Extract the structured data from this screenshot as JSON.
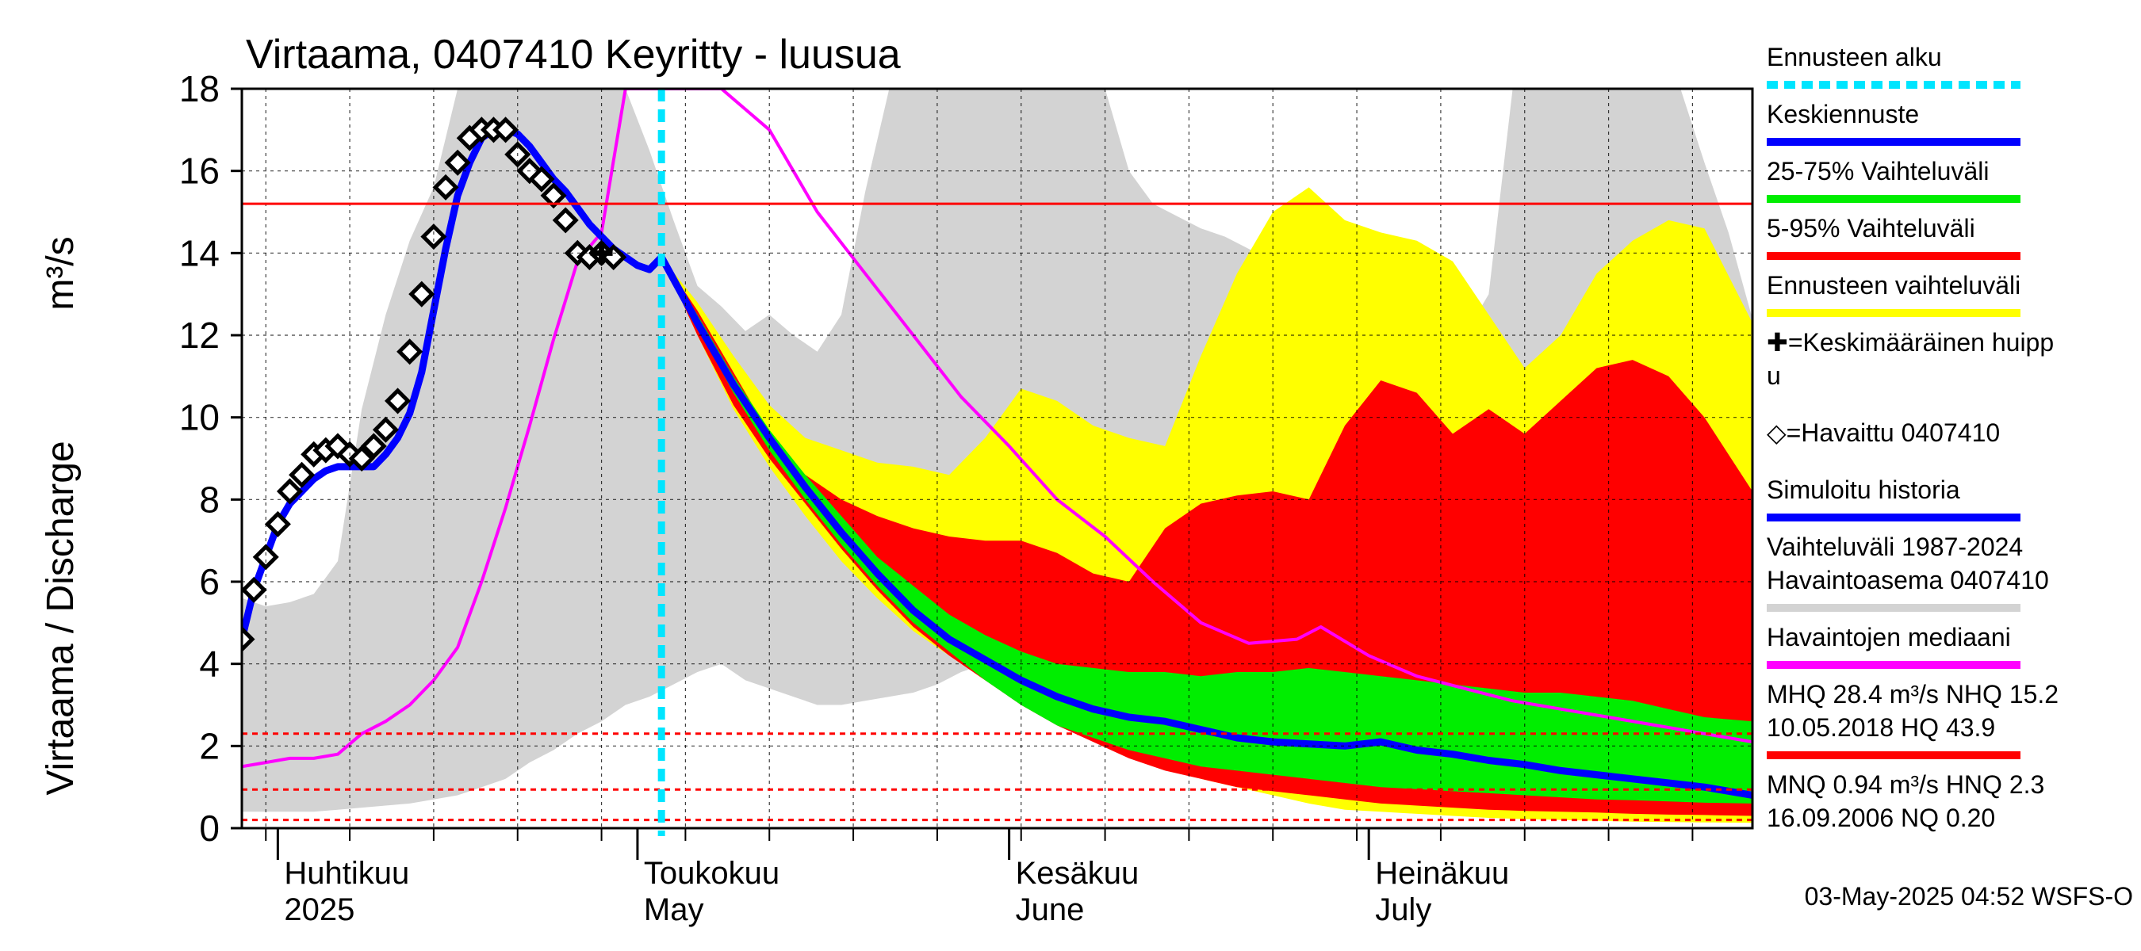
{
  "chart_data": {
    "type": "area",
    "title": "Virtaama, 0407410 Keyritty - luusua",
    "ylabel": "Virtaama / Discharge",
    "yunit": "m³/s",
    "ylim": [
      0,
      18
    ],
    "yticks": [
      0,
      2,
      4,
      6,
      8,
      10,
      12,
      14,
      16,
      18
    ],
    "ytick_labels": [
      "0",
      "2",
      "4",
      "6",
      "8",
      "10",
      "12",
      "14",
      "16",
      "18"
    ],
    "xlim": [
      "2025-03-29",
      "2025-08-02"
    ],
    "grid": true,
    "x_axis_labels": [
      {
        "date": "2025-04-01",
        "line1": "Huhtikuu",
        "line2": "2025"
      },
      {
        "date": "2025-05-01",
        "line1": "Toukokuu",
        "line2": "May"
      },
      {
        "date": "2025-06-01",
        "line1": "Kesäkuu",
        "line2": "June"
      },
      {
        "date": "2025-07-01",
        "line1": "Heinäkuu",
        "line2": "July"
      }
    ],
    "forecast_start": "2025-05-03",
    "reference_lines": [
      {
        "name": "NHQ",
        "value": 15.2,
        "style": "solid"
      },
      {
        "name": "HNQ",
        "value": 2.3,
        "style": "dashed"
      },
      {
        "name": "MNQ",
        "value": 0.94,
        "style": "dashed"
      },
      {
        "name": "NQ",
        "value": 0.2,
        "style": "dashed"
      }
    ],
    "series": [
      {
        "name": "Vaihteluväli 1987-2024 Havaintoasema 0407410",
        "kind": "band",
        "x": [
          "2025-03-29",
          "2025-03-31",
          "2025-04-02",
          "2025-04-04",
          "2025-04-06",
          "2025-04-08",
          "2025-04-10",
          "2025-04-12",
          "2025-04-14",
          "2025-04-16",
          "2025-04-18",
          "2025-04-20",
          "2025-04-22",
          "2025-04-24",
          "2025-04-26",
          "2025-04-28",
          "2025-04-30",
          "2025-05-02",
          "2025-05-04",
          "2025-05-06",
          "2025-05-08",
          "2025-05-10",
          "2025-05-12",
          "2025-05-14",
          "2025-05-16",
          "2025-05-18",
          "2025-05-20",
          "2025-05-22",
          "2025-05-24",
          "2025-05-26",
          "2025-05-28",
          "2025-05-30",
          "2025-06-01",
          "2025-06-03",
          "2025-06-05",
          "2025-06-07",
          "2025-06-09",
          "2025-06-11",
          "2025-06-13",
          "2025-06-15",
          "2025-06-17",
          "2025-06-19",
          "2025-06-21",
          "2025-06-23",
          "2025-06-25",
          "2025-06-27",
          "2025-06-29",
          "2025-07-01",
          "2025-07-03",
          "2025-07-05",
          "2025-07-07",
          "2025-07-09",
          "2025-07-11",
          "2025-07-13",
          "2025-07-15",
          "2025-07-17",
          "2025-07-19",
          "2025-07-21",
          "2025-07-23",
          "2025-07-25",
          "2025-07-27",
          "2025-07-29",
          "2025-07-31",
          "2025-08-02"
        ],
        "upper": [
          5.6,
          5.4,
          5.5,
          5.7,
          6.5,
          10.2,
          12.5,
          14.3,
          15.6,
          18,
          18,
          18,
          18,
          18,
          18,
          18,
          18,
          16.5,
          14.8,
          13.2,
          12.7,
          12.1,
          12.5,
          12,
          11.6,
          12.5,
          15.5,
          18,
          18,
          18,
          18,
          18,
          18,
          18,
          18,
          18,
          18,
          16,
          15.2,
          14.9,
          14.6,
          14.4,
          14.1,
          13.8,
          13.4,
          13,
          12.8,
          12.5,
          11.9,
          11.3,
          11.5,
          12,
          13,
          18,
          18,
          18,
          18,
          18,
          18,
          18,
          18,
          16.2,
          14.5,
          12.4
        ],
        "lower": [
          0.4,
          0.4,
          0.4,
          0.4,
          0.45,
          0.5,
          0.55,
          0.6,
          0.7,
          0.8,
          1,
          1.2,
          1.6,
          1.9,
          2.3,
          2.6,
          3,
          3.2,
          3.5,
          3.8,
          4,
          3.6,
          3.4,
          3.2,
          3,
          3,
          3.1,
          3.2,
          3.3,
          3.5,
          3.8,
          4,
          3.6,
          3.4,
          3.2,
          3.1,
          3,
          2.9,
          2.8,
          2.7,
          2.6,
          2.5,
          2.4,
          2.3,
          2.2,
          2.1,
          2,
          1.9,
          1.8,
          1.7,
          1.6,
          1.6,
          1.5,
          1.5,
          1.4,
          1.4,
          1.3,
          1.3,
          1.2,
          1.2,
          1.1,
          1.1,
          1,
          1
        ],
        "color": "#d3d3d3"
      },
      {
        "name": "Ennusteen vaihteluväli",
        "kind": "band",
        "x": [
          "2025-05-03",
          "2025-05-06",
          "2025-05-09",
          "2025-05-12",
          "2025-05-15",
          "2025-05-18",
          "2025-05-21",
          "2025-05-24",
          "2025-05-27",
          "2025-05-30",
          "2025-06-02",
          "2025-06-05",
          "2025-06-08",
          "2025-06-11",
          "2025-06-14",
          "2025-06-17",
          "2025-06-20",
          "2025-06-23",
          "2025-06-26",
          "2025-06-29",
          "2025-07-02",
          "2025-07-05",
          "2025-07-08",
          "2025-07-11",
          "2025-07-14",
          "2025-07-17",
          "2025-07-20",
          "2025-07-23",
          "2025-07-26",
          "2025-07-29",
          "2025-08-02"
        ],
        "upper": [
          13.9,
          12.8,
          11.5,
          10.3,
          9.5,
          9.2,
          8.9,
          8.8,
          8.6,
          9.5,
          10.7,
          10.4,
          9.8,
          9.5,
          9.3,
          11.5,
          13.5,
          15,
          15.6,
          14.8,
          14.5,
          14.3,
          13.8,
          12.5,
          11.2,
          12,
          13.5,
          14.3,
          14.8,
          14.6,
          12.3
        ],
        "lower": [
          13.9,
          12,
          10.2,
          8.8,
          7.6,
          6.5,
          5.6,
          4.8,
          4.2,
          3.6,
          3.1,
          2.6,
          2.2,
          1.8,
          1.5,
          1.2,
          1,
          0.8,
          0.6,
          0.45,
          0.4,
          0.35,
          0.3,
          0.25,
          0.22,
          0.2,
          0.18,
          0.16,
          0.15,
          0.14,
          0.13
        ],
        "color": "#ffff00"
      },
      {
        "name": "5-95% Vaihteluväli",
        "kind": "band",
        "x": [
          "2025-05-03",
          "2025-05-06",
          "2025-05-09",
          "2025-05-12",
          "2025-05-15",
          "2025-05-18",
          "2025-05-21",
          "2025-05-24",
          "2025-05-27",
          "2025-05-30",
          "2025-06-02",
          "2025-06-05",
          "2025-06-08",
          "2025-06-11",
          "2025-06-14",
          "2025-06-17",
          "2025-06-20",
          "2025-06-23",
          "2025-06-26",
          "2025-06-29",
          "2025-07-02",
          "2025-07-05",
          "2025-07-08",
          "2025-07-11",
          "2025-07-14",
          "2025-07-17",
          "2025-07-20",
          "2025-07-23",
          "2025-07-26",
          "2025-07-29",
          "2025-08-02"
        ],
        "upper": [
          13.9,
          12.6,
          11.1,
          9.6,
          8.6,
          8,
          7.6,
          7.3,
          7.1,
          7,
          7,
          6.7,
          6.2,
          6,
          7.3,
          7.9,
          8.1,
          8.2,
          8,
          9.8,
          10.9,
          10.6,
          9.6,
          10.2,
          9.6,
          10.4,
          11.2,
          11.4,
          11,
          10,
          8.2
        ],
        "lower": [
          13.9,
          12,
          10.3,
          9,
          7.9,
          6.8,
          5.8,
          4.9,
          4.2,
          3.6,
          3,
          2.5,
          2.1,
          1.7,
          1.4,
          1.2,
          1,
          0.9,
          0.8,
          0.7,
          0.6,
          0.55,
          0.5,
          0.45,
          0.42,
          0.4,
          0.38,
          0.35,
          0.33,
          0.32,
          0.3
        ],
        "color": "#ff0000"
      },
      {
        "name": "25-75% Vaihteluväli",
        "kind": "band",
        "x": [
          "2025-05-03",
          "2025-05-06",
          "2025-05-09",
          "2025-05-12",
          "2025-05-15",
          "2025-05-18",
          "2025-05-21",
          "2025-05-24",
          "2025-05-27",
          "2025-05-30",
          "2025-06-02",
          "2025-06-05",
          "2025-06-08",
          "2025-06-11",
          "2025-06-14",
          "2025-06-17",
          "2025-06-20",
          "2025-06-23",
          "2025-06-26",
          "2025-06-29",
          "2025-07-02",
          "2025-07-05",
          "2025-07-08",
          "2025-07-11",
          "2025-07-14",
          "2025-07-17",
          "2025-07-20",
          "2025-07-23",
          "2025-07-26",
          "2025-07-29",
          "2025-08-02"
        ],
        "upper": [
          13.9,
          12.5,
          11,
          9.7,
          8.6,
          7.6,
          6.6,
          5.9,
          5.2,
          4.7,
          4.3,
          4,
          3.9,
          3.8,
          3.8,
          3.7,
          3.8,
          3.8,
          3.9,
          3.8,
          3.7,
          3.6,
          3.5,
          3.4,
          3.3,
          3.3,
          3.2,
          3.1,
          2.9,
          2.7,
          2.6
        ],
        "lower": [
          13.9,
          12.2,
          10.6,
          9.2,
          8,
          6.9,
          5.9,
          5,
          4.3,
          3.6,
          3,
          2.5,
          2.2,
          1.9,
          1.7,
          1.5,
          1.4,
          1.3,
          1.2,
          1.1,
          1,
          0.95,
          0.9,
          0.85,
          0.8,
          0.75,
          0.7,
          0.68,
          0.65,
          0.62,
          0.6
        ],
        "color": "#00ee00"
      },
      {
        "name": "Havaintojen mediaani",
        "kind": "line",
        "x": [
          "2025-03-29",
          "2025-03-31",
          "2025-04-02",
          "2025-04-04",
          "2025-04-06",
          "2025-04-08",
          "2025-04-10",
          "2025-04-12",
          "2025-04-14",
          "2025-04-16",
          "2025-04-18",
          "2025-04-20",
          "2025-04-22",
          "2025-04-24",
          "2025-04-26",
          "2025-04-28",
          "2025-04-30",
          "2025-05-08",
          "2025-05-12",
          "2025-05-16",
          "2025-05-20",
          "2025-05-24",
          "2025-05-28",
          "2025-06-01",
          "2025-06-05",
          "2025-06-09",
          "2025-06-13",
          "2025-06-17",
          "2025-06-21",
          "2025-06-25",
          "2025-06-27",
          "2025-07-01",
          "2025-07-05",
          "2025-07-09",
          "2025-07-13",
          "2025-07-17",
          "2025-07-21",
          "2025-07-25",
          "2025-07-29",
          "2025-08-02"
        ],
        "y": [
          1.5,
          1.6,
          1.7,
          1.7,
          1.8,
          2.3,
          2.6,
          3,
          3.6,
          4.4,
          6,
          7.8,
          9.8,
          11.9,
          13.8,
          14.5,
          19,
          19,
          17,
          15,
          13.5,
          12,
          10.5,
          9.3,
          8,
          7.1,
          6,
          5,
          4.5,
          4.6,
          4.9,
          4.2,
          3.7,
          3.4,
          3.1,
          2.9,
          2.7,
          2.5,
          2.3,
          2.1
        ],
        "color": "#ff00ff"
      },
      {
        "name": "Simuloitu historia",
        "kind": "line",
        "x": [
          "2025-03-29",
          "2025-03-30",
          "2025-03-31",
          "2025-04-01",
          "2025-04-02",
          "2025-04-03",
          "2025-04-04",
          "2025-04-05",
          "2025-04-06",
          "2025-04-07",
          "2025-04-08",
          "2025-04-09",
          "2025-04-10",
          "2025-04-11",
          "2025-04-12",
          "2025-04-13",
          "2025-04-14",
          "2025-04-15",
          "2025-04-16",
          "2025-04-17",
          "2025-04-18",
          "2025-04-19",
          "2025-04-20",
          "2025-04-21",
          "2025-04-22",
          "2025-04-23",
          "2025-04-24",
          "2025-04-25",
          "2025-04-26",
          "2025-04-27",
          "2025-04-28",
          "2025-04-29",
          "2025-04-30",
          "2025-05-01",
          "2025-05-02",
          "2025-05-03"
        ],
        "y": [
          4.6,
          5.8,
          6.6,
          7.4,
          7.9,
          8.2,
          8.5,
          8.7,
          8.8,
          8.8,
          8.8,
          8.8,
          9.1,
          9.5,
          10.1,
          11.1,
          12.6,
          14.1,
          15.4,
          16.2,
          16.8,
          17,
          17,
          16.9,
          16.6,
          16.2,
          15.8,
          15.5,
          15.1,
          14.7,
          14.4,
          14.1,
          13.9,
          13.7,
          13.6,
          13.9
        ],
        "color": "#0000ff"
      },
      {
        "name": "Keskiennuste",
        "kind": "line",
        "x": [
          "2025-05-03",
          "2025-05-06",
          "2025-05-09",
          "2025-05-12",
          "2025-05-15",
          "2025-05-18",
          "2025-05-21",
          "2025-05-24",
          "2025-05-27",
          "2025-05-30",
          "2025-06-02",
          "2025-06-05",
          "2025-06-08",
          "2025-06-11",
          "2025-06-14",
          "2025-06-17",
          "2025-06-20",
          "2025-06-23",
          "2025-06-26",
          "2025-06-29",
          "2025-07-02",
          "2025-07-05",
          "2025-07-08",
          "2025-07-11",
          "2025-07-14",
          "2025-07-17",
          "2025-07-20",
          "2025-07-23",
          "2025-07-26",
          "2025-07-29",
          "2025-08-02"
        ],
        "y": [
          13.9,
          12.3,
          10.8,
          9.5,
          8.3,
          7.2,
          6.2,
          5.3,
          4.6,
          4.1,
          3.6,
          3.2,
          2.9,
          2.7,
          2.6,
          2.4,
          2.2,
          2.1,
          2.05,
          2,
          2.1,
          1.9,
          1.8,
          1.65,
          1.55,
          1.4,
          1.3,
          1.2,
          1.1,
          1.0,
          0.8
        ],
        "color": "#0000ff"
      },
      {
        "name": "Havaittu 0407410",
        "kind": "markers",
        "marker": "diamond",
        "x": [
          "2025-03-29",
          "2025-03-30",
          "2025-03-31",
          "2025-04-01",
          "2025-04-02",
          "2025-04-03",
          "2025-04-04",
          "2025-04-05",
          "2025-04-06",
          "2025-04-07",
          "2025-04-08",
          "2025-04-09",
          "2025-04-10",
          "2025-04-11",
          "2025-04-12",
          "2025-04-13",
          "2025-04-14",
          "2025-04-15",
          "2025-04-16",
          "2025-04-17",
          "2025-04-18",
          "2025-04-19",
          "2025-04-20",
          "2025-04-21",
          "2025-04-22",
          "2025-04-23",
          "2025-04-24",
          "2025-04-25",
          "2025-04-26",
          "2025-04-27",
          "2025-04-28",
          "2025-04-29"
        ],
        "y": [
          4.6,
          5.8,
          6.6,
          7.4,
          8.2,
          8.6,
          9.1,
          9.2,
          9.3,
          9.1,
          9.0,
          9.3,
          9.7,
          10.4,
          11.6,
          13.0,
          14.4,
          15.6,
          16.2,
          16.8,
          17.0,
          17.0,
          17.0,
          16.4,
          16.0,
          15.8,
          15.4,
          14.8,
          14.0,
          13.9,
          14.0,
          13.9
        ],
        "color": "#000000"
      },
      {
        "name": "Keskimääräinen huippu",
        "kind": "markers",
        "marker": "plus",
        "x": [
          "2025-04-28"
        ],
        "y": [
          14.0
        ],
        "color": "#000000"
      }
    ],
    "legend": {
      "placement": "right",
      "items": [
        {
          "label": "Ennusteen alku",
          "style": "dotted",
          "color": "#00e5ff"
        },
        {
          "label": "Keskiennuste",
          "style": "line",
          "color": "#0000ff"
        },
        {
          "label": "25-75% Vaihteluväli",
          "style": "line",
          "color": "#00ee00"
        },
        {
          "label": "5-95% Vaihteluväli",
          "style": "line",
          "color": "#ff0000"
        },
        {
          "label": "Ennusteen vaihteluväli",
          "style": "line",
          "color": "#ffff00"
        },
        {
          "label_lines": [
            "✚=Keskimääräinen huipp",
            "u"
          ],
          "style": "none"
        },
        {
          "label": "◇=Havaittu 0407410",
          "style": "none"
        },
        {
          "label": "Simuloitu historia",
          "style": "line",
          "color": "#0000ff"
        },
        {
          "label_lines": [
            "Vaihteluväli 1987-2024",
            " Havaintoasema 0407410"
          ],
          "style": "line",
          "color": "#d3d3d3"
        },
        {
          "label": "Havaintojen mediaani",
          "style": "line",
          "color": "#ff00ff"
        },
        {
          "label_lines": [
            "MHQ 28.4 m³/s NHQ 15.2",
            "10.05.2018 HQ 43.9"
          ],
          "style": "line",
          "color": "#ff0000"
        },
        {
          "label_lines": [
            "MNQ 0.94 m³/s HNQ  2.3",
            "16.09.2006 NQ 0.20"
          ],
          "style": "none"
        }
      ]
    },
    "footer": "03-May-2025 04:52 WSFS-O"
  }
}
